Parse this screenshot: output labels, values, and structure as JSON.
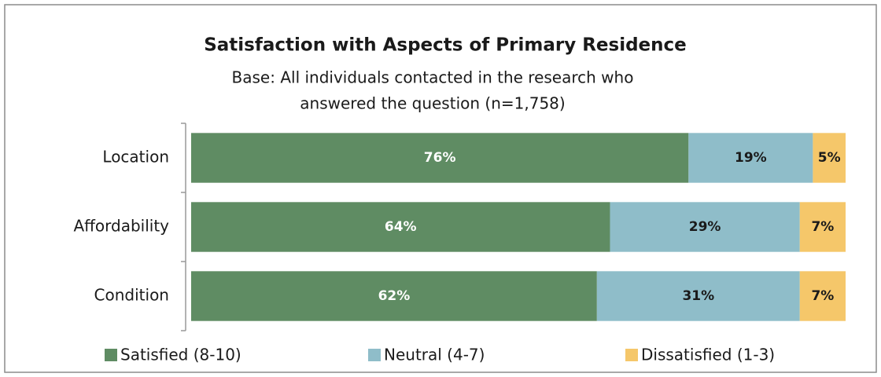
{
  "chart_data": {
    "type": "stacked-bar-horizontal",
    "title": "Satisfaction with Aspects of Primary Residence",
    "subtitle": [
      "Base: All individuals contacted in the research who",
      "answered the question (n=1,758)"
    ],
    "categories": [
      "Location",
      "Affordability",
      "Condition"
    ],
    "series": [
      {
        "name": "Satisfied (8-10)",
        "color": "#5f8c63",
        "label_color": "#ffffff",
        "values": [
          76,
          64,
          62
        ],
        "value_labels": [
          "76%",
          "64%",
          "62%"
        ]
      },
      {
        "name": "Neutral (4-7)",
        "color": "#8fbdc9",
        "label_color": "#1a1a1a",
        "values": [
          19,
          29,
          31
        ],
        "value_labels": [
          "19%",
          "29%",
          "31%"
        ]
      },
      {
        "name": "Dissatisfied (1-3)",
        "color": "#f5c76a",
        "label_color": "#1a1a1a",
        "values": [
          5,
          7,
          7
        ],
        "value_labels": [
          "5%",
          "7%",
          "7%"
        ]
      }
    ],
    "xlim": [
      0,
      100
    ],
    "legend": "bottom"
  }
}
